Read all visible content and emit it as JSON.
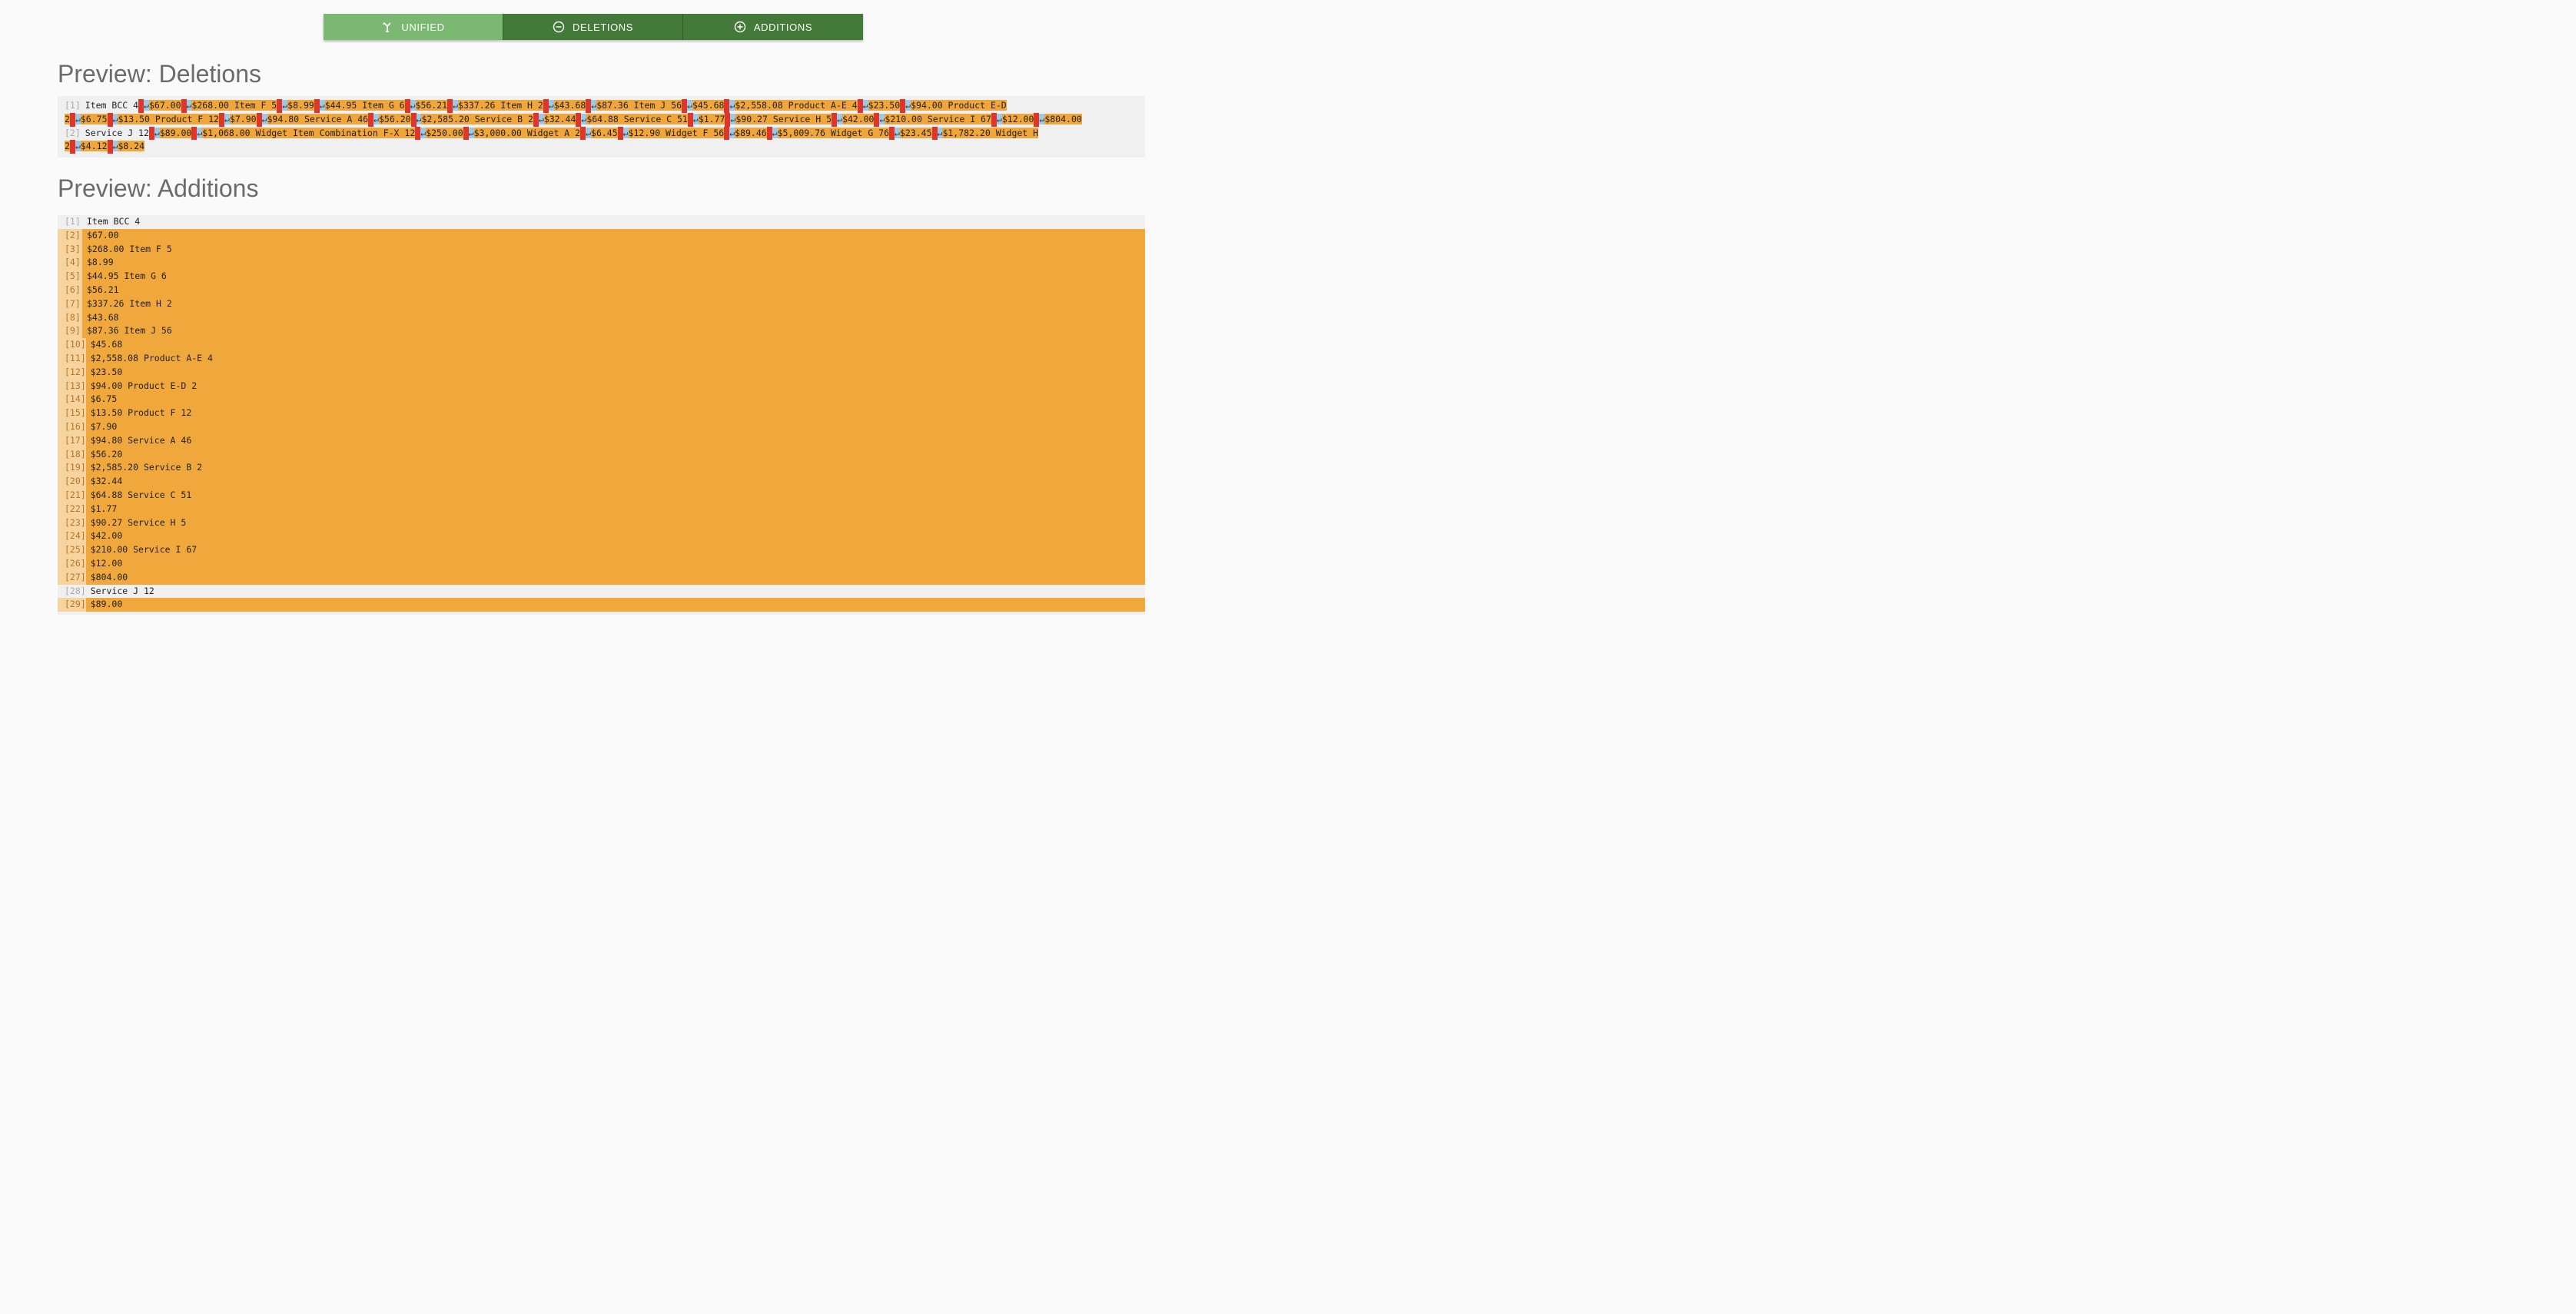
{
  "toolbar": {
    "unified_label": "UNIFIED",
    "deletions_label": "DELETIONS",
    "additions_label": "ADDITIONS"
  },
  "deletions": {
    "heading": "Preview: Deletions",
    "line1_no": "[1]",
    "line1_start": "Item BCC 4",
    "line1_rest": [
      "$67.00",
      "$268.00 Item F 5",
      "$8.99",
      "$44.95 Item G 6",
      "$56.21",
      "$337.26 Item H 2",
      "$43.68",
      "$87.36 Item J 56",
      "$45.68",
      "$2,558.08 Product A-E 4",
      "$23.50",
      "$94.00 Product E-D"
    ],
    "line1_cont": [
      "2",
      "$6.75",
      "$13.50 Product F 12",
      "$7.90",
      "$94.80 Service A 46",
      "$56.20",
      "$2,585.20 Service B 2",
      "$32.44",
      "$64.88 Service C 51",
      "$1.77",
      "$90.27 Service H 5",
      "$42.00",
      "$210.00 Service I 67",
      "$12.00",
      "$804.00"
    ],
    "line2_no": "[2]",
    "line2_start": "Service J 12",
    "line2_rest": [
      "$89.00",
      "$1,068.00 Widget Item Combination F-X 12",
      "$250.00",
      "$3,000.00 Widget A 2",
      "$6.45",
      "$12.90 Widget F 56",
      "$89.46",
      "$5,009.76 Widget G 76",
      "$23.45",
      "$1,782.20 Widget H"
    ],
    "line2_cont": [
      "2",
      "$4.12",
      "$8.24"
    ]
  },
  "additions": {
    "heading": "Preview: Additions",
    "rows": [
      {
        "no": "[1]",
        "text": "Item BCC 4",
        "added": false
      },
      {
        "no": "[2]",
        "text": "$67.00",
        "added": true
      },
      {
        "no": "[3]",
        "text": "$268.00 Item F 5",
        "added": true
      },
      {
        "no": "[4]",
        "text": "$8.99",
        "added": true
      },
      {
        "no": "[5]",
        "text": "$44.95 Item G 6",
        "added": true
      },
      {
        "no": "[6]",
        "text": "$56.21",
        "added": true
      },
      {
        "no": "[7]",
        "text": "$337.26 Item H 2",
        "added": true
      },
      {
        "no": "[8]",
        "text": "$43.68",
        "added": true
      },
      {
        "no": "[9]",
        "text": "$87.36 Item J 56",
        "added": true
      },
      {
        "no": "[10]",
        "text": "$45.68",
        "added": true
      },
      {
        "no": "[11]",
        "text": "$2,558.08 Product A-E 4",
        "added": true
      },
      {
        "no": "[12]",
        "text": "$23.50",
        "added": true
      },
      {
        "no": "[13]",
        "text": "$94.00 Product E-D 2",
        "added": true
      },
      {
        "no": "[14]",
        "text": "$6.75",
        "added": true
      },
      {
        "no": "[15]",
        "text": "$13.50 Product F 12",
        "added": true
      },
      {
        "no": "[16]",
        "text": "$7.90",
        "added": true
      },
      {
        "no": "[17]",
        "text": "$94.80 Service A 46",
        "added": true
      },
      {
        "no": "[18]",
        "text": "$56.20",
        "added": true
      },
      {
        "no": "[19]",
        "text": "$2,585.20 Service B 2",
        "added": true
      },
      {
        "no": "[20]",
        "text": "$32.44",
        "added": true
      },
      {
        "no": "[21]",
        "text": "$64.88 Service C 51",
        "added": true
      },
      {
        "no": "[22]",
        "text": "$1.77",
        "added": true
      },
      {
        "no": "[23]",
        "text": "$90.27 Service H 5",
        "added": true
      },
      {
        "no": "[24]",
        "text": "$42.00",
        "added": true
      },
      {
        "no": "[25]",
        "text": "$210.00 Service I 67",
        "added": true
      },
      {
        "no": "[26]",
        "text": "$12.00",
        "added": true
      },
      {
        "no": "[27]",
        "text": "$804.00",
        "added": true
      },
      {
        "no": "[28]",
        "text": "Service J 12",
        "added": false
      },
      {
        "no": "[29]",
        "text": "$89.00",
        "added": true
      }
    ]
  },
  "icons": {
    "unified": "merge-icon",
    "deletions": "minus-circle-icon",
    "additions": "plus-circle-icon"
  },
  "colors": {
    "active_button": "#7bb872",
    "button": "#437a39",
    "highlight": "#f0a63a",
    "deleted_marker": "#e0352b"
  }
}
